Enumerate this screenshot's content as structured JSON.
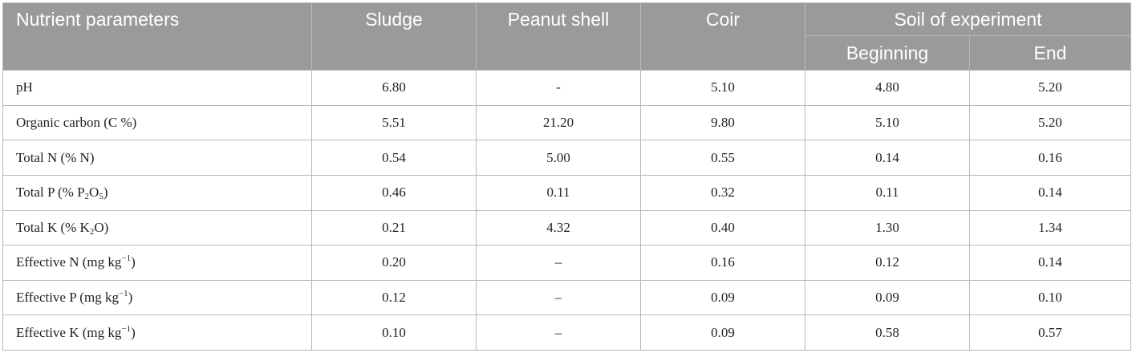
{
  "table": {
    "headers": {
      "parameter": "Nutrient parameters",
      "sludge": "Sludge",
      "peanut_shell": "Peanut shell",
      "coir": "Coir",
      "soil_group": "Soil of experiment",
      "beginning": "Beginning",
      "end": "End"
    },
    "rows": [
      {
        "parameter": "pH",
        "sludge": "6.80",
        "peanut_shell": "-",
        "coir": "5.10",
        "beginning": "4.80",
        "end": "5.20"
      },
      {
        "parameter": "Organic carbon (C %)",
        "sludge": "5.51",
        "peanut_shell": "21.20",
        "coir": "9.80",
        "beginning": "5.10",
        "end": "5.20"
      },
      {
        "parameter": "Total N (% N)",
        "sludge": "0.54",
        "peanut_shell": "5.00",
        "coir": "0.55",
        "beginning": "0.14",
        "end": "0.16"
      },
      {
        "parameter_parts": [
          "Total P (% P",
          "2",
          "O",
          "5",
          ")"
        ],
        "sludge": "0.46",
        "peanut_shell": "0.11",
        "coir": "0.32",
        "beginning": "0.11",
        "end": "0.14"
      },
      {
        "parameter_parts": [
          "Total K (% K",
          "2",
          "O)"
        ],
        "sludge": "0.21",
        "peanut_shell": "4.32",
        "coir": "0.40",
        "beginning": "1.30",
        "end": "1.34"
      },
      {
        "parameter_parts": [
          "Effective N (mg kg",
          "−1",
          ")"
        ],
        "sludge": "0.20",
        "peanut_shell": "–",
        "coir": "0.16",
        "beginning": "0.12",
        "end": "0.14"
      },
      {
        "parameter_parts": [
          "Effective P (mg kg",
          "−1",
          ")"
        ],
        "sludge": "0.12",
        "peanut_shell": "–",
        "coir": "0.09",
        "beginning": "0.09",
        "end": "0.10"
      },
      {
        "parameter_parts": [
          "Effective K (mg kg",
          "−1",
          ")"
        ],
        "sludge": "0.10",
        "peanut_shell": "–",
        "coir": "0.09",
        "beginning": "0.58",
        "end": "0.57"
      }
    ]
  }
}
